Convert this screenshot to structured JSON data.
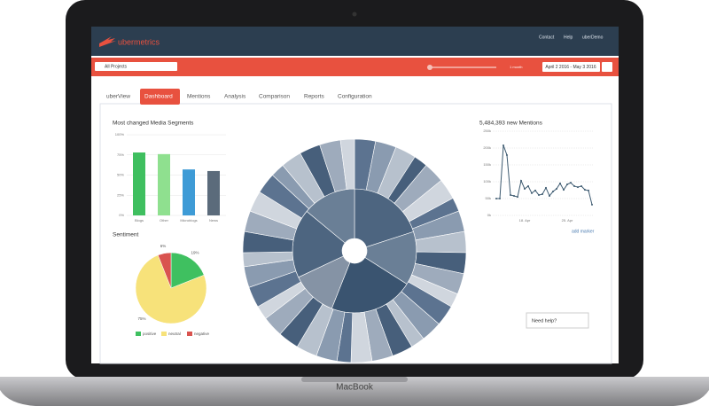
{
  "header": {
    "logo": "ubermetrics",
    "links": [
      "Contact",
      "Help",
      "uberDemo"
    ]
  },
  "toolbar": {
    "project": "All Projects",
    "slider_label": "1 month",
    "date_range": "April 2 2016 - May 3 2016"
  },
  "tabs": [
    "uberView",
    "Dashboard",
    "Mentions",
    "Analysis",
    "Comparison",
    "Reports",
    "Configuration"
  ],
  "chart_data": [
    {
      "type": "bar",
      "title": "Most changed Media Segments",
      "categories": [
        "Blogs",
        "Other",
        "Microblogs",
        "News"
      ],
      "values": [
        78,
        76,
        57,
        55
      ],
      "colors": [
        "#3fbf5f",
        "#8fe08f",
        "#3e9bd6",
        "#5b6b7b"
      ],
      "ylim": [
        0,
        100
      ],
      "yticks": [
        {
          "value": 0,
          "label": "0%"
        },
        {
          "value": 25,
          "label": "25%"
        },
        {
          "value": 50,
          "label": "50%"
        },
        {
          "value": 75,
          "label": "75%"
        },
        {
          "value": 100,
          "label": "100%"
        }
      ],
      "grid": true
    },
    {
      "type": "pie",
      "title": "Sentiment",
      "categories": [
        "positive",
        "neutral",
        "negative"
      ],
      "values": [
        19,
        75,
        6
      ],
      "value_labels": [
        "19%",
        "75%",
        "6%"
      ],
      "colors": [
        "#3fc060",
        "#f7e27a",
        "#d9534f"
      ]
    },
    {
      "type": "line",
      "title": "5,484,393 new Mentions",
      "color": "#3d5a70",
      "categories": [
        null,
        null,
        null,
        null,
        null,
        null,
        null,
        null,
        "18. Apr",
        null,
        null,
        null,
        null,
        null,
        null,
        null,
        null,
        null,
        null,
        null,
        "25. Apr",
        null,
        null,
        null,
        null,
        null,
        null,
        null
      ],
      "values": [
        50000,
        50000,
        208000,
        179000,
        60500,
        58000,
        55000,
        103000,
        79000,
        87000,
        66000,
        74000,
        60500,
        63000,
        82000,
        58000,
        71000,
        79000,
        95000,
        76000,
        92000,
        97000,
        87000,
        84000,
        87000,
        76000,
        74000,
        32000
      ],
      "ylim": [
        0,
        250000
      ],
      "yticks": [
        {
          "value": 0,
          "label": "0k"
        },
        {
          "value": 50000,
          "label": "50k"
        },
        {
          "value": 100000,
          "label": "100k"
        },
        {
          "value": 150000,
          "label": "150k"
        },
        {
          "value": 200000,
          "label": "200k"
        },
        {
          "value": 250000,
          "label": "250k"
        }
      ],
      "grid": true
    },
    {
      "type": "sunburst",
      "rings": [
        {
          "values": [
            20,
            14,
            22,
            12,
            18,
            14
          ],
          "colors": [
            "#4d6580",
            "#6a7f96",
            "#3a5470",
            "#8593a5"
          ]
        },
        {
          "values": [
            3,
            3,
            3,
            2,
            3,
            3,
            2,
            3,
            3,
            3,
            3,
            2,
            3,
            3,
            2,
            3,
            3,
            3,
            2,
            3,
            3,
            3,
            3,
            2,
            3,
            3,
            2,
            3,
            3,
            3,
            3,
            2,
            3,
            3,
            3,
            2
          ],
          "colors": [
            "#5c7390",
            "#8a9bb0",
            "#b7c1cd",
            "#475f7b",
            "#9eabbc",
            "#d0d6de"
          ]
        }
      ]
    }
  ],
  "help": "Need help?",
  "add_marker": "add marker",
  "device": "MacBook"
}
